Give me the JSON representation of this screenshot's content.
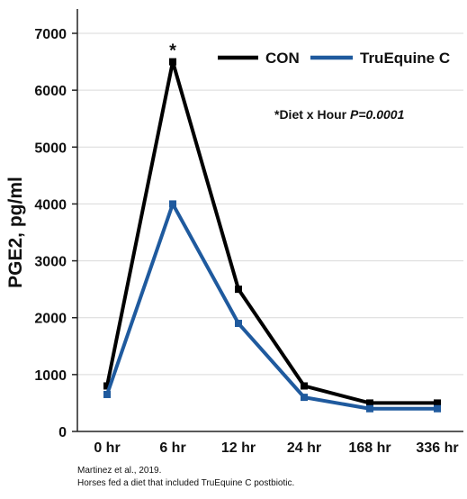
{
  "chart_data": {
    "type": "line",
    "categories": [
      "0 hr",
      "6 hr",
      "12 hr",
      "24 hr",
      "168 hr",
      "336 hr"
    ],
    "ylabel": "PGE2, pg/ml",
    "ylim": [
      0,
      7000
    ],
    "yticks": [
      0,
      1000,
      2000,
      3000,
      4000,
      5000,
      6000,
      7000
    ],
    "grid": "horizontal",
    "legend_position": "top-right",
    "series": [
      {
        "name": "CON",
        "color": "#000000",
        "values": [
          800,
          6500,
          2500,
          800,
          500,
          500
        ]
      },
      {
        "name": "TruEquine C",
        "color": "#1f5a9e",
        "values": [
          650,
          4000,
          1900,
          600,
          400,
          400
        ]
      }
    ],
    "significance_marker": {
      "text": "*",
      "category": "6 hr"
    },
    "annotation": {
      "prefix": "*Diet x Hour ",
      "p_value": "P=0.0001"
    }
  },
  "footnotes": [
    "Martinez et al., 2019.",
    "Horses fed a diet that included TruEquine C postbiotic."
  ]
}
